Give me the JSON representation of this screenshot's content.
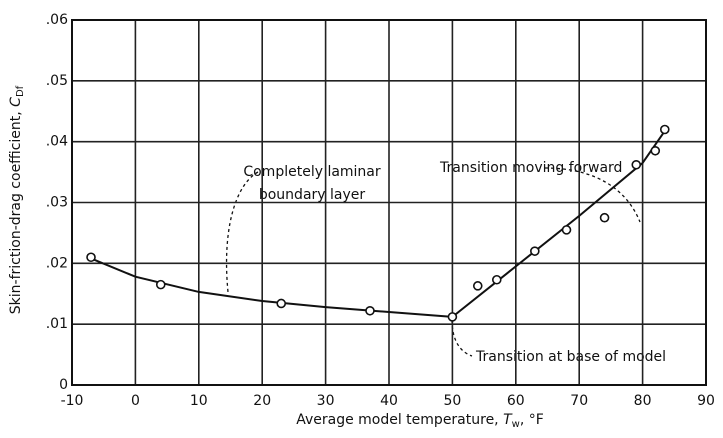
{
  "chart_data": {
    "type": "scatter",
    "xlabel": [
      "Average model temperature, ",
      "T",
      "w",
      ", °F"
    ],
    "ylabel": [
      "Skin-friction-drag coefficient, ",
      "C",
      "Df"
    ],
    "x": [
      -7,
      4,
      23,
      37,
      50,
      54,
      57,
      63,
      68,
      74,
      79,
      82,
      83.5
    ],
    "values": [
      0.021,
      0.0165,
      0.0134,
      0.0122,
      0.0112,
      0.0163,
      0.0173,
      0.022,
      0.0255,
      0.0275,
      0.0362,
      0.0385,
      0.042
    ],
    "color": "#111111",
    "curves": [
      {
        "x": [
          -7,
          0,
          10,
          20,
          30,
          40,
          50
        ],
        "values": [
          0.0208,
          0.0178,
          0.0153,
          0.0138,
          0.0128,
          0.012,
          0.0112
        ]
      },
      {
        "x": [
          50,
          60,
          70,
          80,
          84
        ],
        "values": [
          0.0112,
          0.0195,
          0.0278,
          0.0365,
          0.0425
        ]
      }
    ],
    "annotations": [
      [
        "Completely laminar",
        "boundary layer"
      ],
      [
        "Transition moving forward"
      ],
      [
        "Transition at base of model"
      ]
    ],
    "xlim": [
      -10,
      90
    ],
    "xticks": [
      -10,
      0,
      10,
      20,
      30,
      40,
      50,
      60,
      70,
      80,
      90
    ],
    "ylim": [
      0,
      0.06
    ],
    "yticks": [
      0,
      {
        "value": 0.01,
        "label": ".01"
      },
      {
        "value": 0.02,
        "label": ".02"
      },
      {
        "value": 0.03,
        "label": ".03"
      },
      {
        "value": 0.04,
        "label": ".04"
      },
      {
        "value": 0.05,
        "label": ".05"
      },
      {
        "value": 0.06,
        "label": ".06"
      }
    ],
    "grid": true
  }
}
